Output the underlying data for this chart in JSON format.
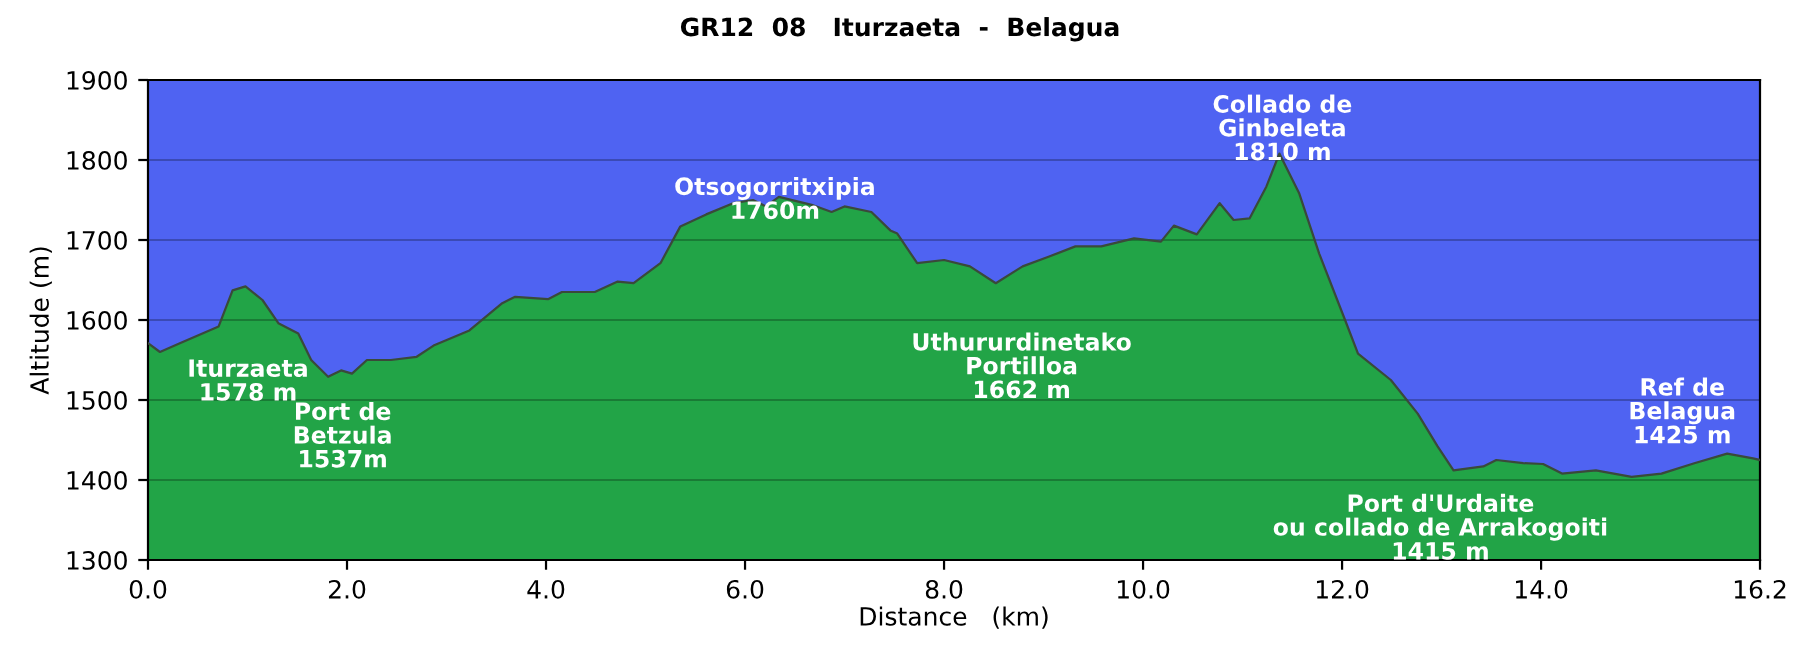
{
  "chart_data": {
    "type": "area",
    "title": "GR12  08   Iturzaeta  -  Belagua",
    "xlabel": "Distance   (km)",
    "ylabel": "Altitude (m)",
    "x": [
      0,
      0.12,
      0.32,
      0.71,
      0.85,
      0.98,
      1.15,
      1.31,
      1.51,
      1.64,
      1.81,
      1.94,
      2.05,
      2.2,
      2.44,
      2.7,
      2.87,
      3.23,
      3.56,
      3.69,
      4.02,
      4.16,
      4.49,
      4.72,
      4.88,
      5.15,
      5.35,
      5.61,
      5.88,
      6.08,
      6.21,
      6.34,
      6.67,
      6.87,
      7.0,
      7.27,
      7.46,
      7.53,
      7.73,
      8.0,
      8.26,
      8.52,
      8.79,
      9.05,
      9.32,
      9.58,
      9.91,
      10.18,
      10.31,
      10.54,
      10.77,
      10.91,
      11.07,
      11.24,
      11.37,
      11.57,
      11.77,
      12.03,
      12.16,
      12.49,
      12.76,
      12.96,
      13.12,
      13.42,
      13.55,
      13.82,
      14.02,
      14.21,
      14.55,
      14.91,
      15.21,
      15.54,
      15.87,
      16.13,
      16.2
    ],
    "series": [
      {
        "color": "#22a447",
        "values": [
          1571,
          1560,
          1571,
          1592,
          1637,
          1642,
          1625,
          1596,
          1583,
          1550,
          1529,
          1537,
          1533,
          1550,
          1550,
          1554,
          1568,
          1587,
          1621,
          1629,
          1626,
          1635,
          1635,
          1648,
          1646,
          1671,
          1717,
          1732,
          1746,
          1750,
          1742,
          1754,
          1744,
          1735,
          1742,
          1735,
          1712,
          1708,
          1671,
          1675,
          1667,
          1646,
          1667,
          1679,
          1692,
          1692,
          1702,
          1698,
          1718,
          1707,
          1746,
          1725,
          1727,
          1767,
          1808,
          1758,
          1683,
          1600,
          1558,
          1525,
          1483,
          1442,
          1412,
          1417,
          1425,
          1421,
          1420,
          1408,
          1412,
          1404,
          1408,
          1421,
          1433,
          1427,
          1425
        ]
      }
    ],
    "xlim": [
      0,
      16.2
    ],
    "ylim": [
      1300,
      1900
    ],
    "xticks": [
      {
        "value": 0,
        "label": "0.0"
      },
      {
        "value": 2,
        "label": "2.0"
      },
      {
        "value": 4,
        "label": "4.0"
      },
      {
        "value": 6,
        "label": "6.0"
      },
      {
        "value": 8,
        "label": "8.0"
      },
      {
        "value": 10,
        "label": "10.0"
      },
      {
        "value": 12,
        "label": "12.0"
      },
      {
        "value": 14,
        "label": "14.0"
      },
      {
        "value": 16.2,
        "label": "16.2"
      }
    ],
    "yticks": [
      1300,
      1400,
      1500,
      1600,
      1700,
      1800,
      1900
    ],
    "grid": "y",
    "annotations": [
      {
        "text": "Iturzaeta\n1578 m",
        "x": 0,
        "y": 1578
      },
      {
        "text": "Port de\nBetzula\n1537m",
        "x": 1.9,
        "y": 1537
      },
      {
        "text": "Otsogorritxipia\n1760m",
        "x": 6.3,
        "y": 1760
      },
      {
        "text": "Uthururdinetako\nPortilloa\n1662 m",
        "x": 8.5,
        "y": 1662
      },
      {
        "text": "Collado de\nGinbeleta\n1810 m",
        "x": 11.4,
        "y": 1810
      },
      {
        "text": "Port d'Urdaite\nou collado de Arrakogoiti\n1415 m",
        "x": 13.1,
        "y": 1415
      },
      {
        "text": "Ref de\nBelagua\n1425 m",
        "x": 16.2,
        "y": 1425
      }
    ]
  }
}
